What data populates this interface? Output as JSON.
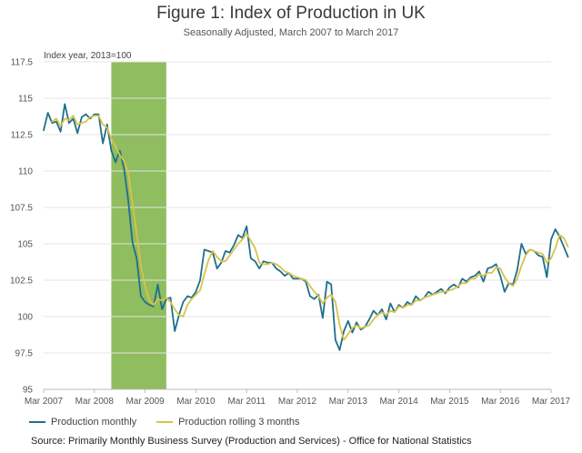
{
  "chart_data": {
    "type": "line",
    "title": "Figure 1: Index of Production in UK",
    "subtitle": "Seasonally Adjusted, March 2007 to March 2017",
    "ylabel": "Index year, 2013=100",
    "ylim": [
      95,
      117.5
    ],
    "yticks": [
      "117.5",
      "115",
      "112.5",
      "110",
      "107.5",
      "105",
      "102.5",
      "100",
      "97.5",
      "95"
    ],
    "xlim": [
      0,
      120
    ],
    "xticks": [
      {
        "label": "Mar 2007",
        "month": 0
      },
      {
        "label": "Mar 2008",
        "month": 12
      },
      {
        "label": "Mar 2009",
        "month": 24
      },
      {
        "label": "Mar 2010",
        "month": 36
      },
      {
        "label": "Mar 2011",
        "month": 48
      },
      {
        "label": "Mar 2012",
        "month": 60
      },
      {
        "label": "Mar 2013",
        "month": 72
      },
      {
        "label": "Mar 2014",
        "month": 84
      },
      {
        "label": "Mar 2015",
        "month": 96
      },
      {
        "label": "Mar 2016",
        "month": 108
      },
      {
        "label": "Mar 2017",
        "month": 120
      }
    ],
    "recession_band": {
      "start": 16,
      "end": 29,
      "color": "#8fbd5f"
    },
    "grid": true,
    "legend_position": "bottom-left",
    "series": [
      {
        "name": "Production monthly",
        "color": "#1f6f8b",
        "values": [
          112.8,
          114.0,
          113.3,
          113.4,
          112.7,
          114.6,
          113.3,
          113.6,
          112.6,
          113.7,
          113.9,
          113.6,
          113.9,
          113.9,
          111.9,
          113.2,
          111.4,
          110.6,
          111.4,
          110.2,
          108.0,
          105.1,
          104.0,
          101.4,
          101.0,
          100.8,
          100.7,
          102.2,
          100.5,
          101.2,
          101.3,
          99.0,
          100.1,
          101.0,
          101.4,
          101.3,
          101.7,
          102.5,
          104.6,
          104.5,
          104.4,
          103.3,
          103.7,
          104.5,
          104.4,
          104.9,
          105.6,
          105.4,
          106.2,
          104.0,
          103.8,
          103.3,
          103.8,
          103.7,
          103.7,
          103.3,
          103.1,
          102.8,
          103.0,
          102.6,
          102.6,
          102.6,
          102.4,
          101.4,
          101.2,
          101.5,
          99.9,
          102.4,
          102.2,
          98.4,
          97.7,
          99.0,
          99.7,
          98.9,
          99.6,
          99.1,
          99.3,
          99.8,
          100.4,
          100.1,
          100.5,
          99.8,
          100.9,
          100.3,
          100.8,
          100.6,
          101.0,
          100.8,
          101.4,
          101.1,
          101.3,
          101.7,
          101.5,
          101.7,
          101.9,
          101.6,
          102.0,
          102.2,
          102.0,
          102.6,
          102.4,
          102.7,
          102.8,
          103.1,
          102.4,
          103.3,
          103.4,
          103.6,
          102.8,
          101.7,
          102.3,
          102.2,
          103.2,
          105.0,
          104.3,
          104.6,
          104.5,
          104.2,
          104.1,
          102.7,
          105.3,
          106.0,
          105.5,
          104.8,
          104.1
        ]
      },
      {
        "name": "Production rolling 3 months",
        "color": "#d9c34a",
        "values": [
          null,
          null,
          113.4,
          113.6,
          113.1,
          113.6,
          113.5,
          113.8,
          113.2,
          113.3,
          113.4,
          113.7,
          113.8,
          113.8,
          113.2,
          113.0,
          112.2,
          111.7,
          111.1,
          110.7,
          109.9,
          107.8,
          105.7,
          103.5,
          102.1,
          101.1,
          100.8,
          101.2,
          101.1,
          101.3,
          101.0,
          100.5,
          100.1,
          100.0,
          100.8,
          101.2,
          101.5,
          101.8,
          102.9,
          103.9,
          104.5,
          104.1,
          103.8,
          103.8,
          104.2,
          104.6,
          105.0,
          105.3,
          105.7,
          105.2,
          104.7,
          103.7,
          103.6,
          103.6,
          103.7,
          103.6,
          103.4,
          103.1,
          103.0,
          102.8,
          102.7,
          102.6,
          102.5,
          102.1,
          101.7,
          101.4,
          100.9,
          101.3,
          101.5,
          101.0,
          99.4,
          98.4,
          98.8,
          99.2,
          99.4,
          99.2,
          99.3,
          99.4,
          99.8,
          100.1,
          100.3,
          100.1,
          100.4,
          100.3,
          100.7,
          100.6,
          100.8,
          100.8,
          101.1,
          101.1,
          101.3,
          101.4,
          101.5,
          101.6,
          101.7,
          101.7,
          101.8,
          101.9,
          102.1,
          102.3,
          102.3,
          102.6,
          102.6,
          102.9,
          102.8,
          103.0,
          103.0,
          103.4,
          103.3,
          102.7,
          102.3,
          102.1,
          102.6,
          103.5,
          104.2,
          104.6,
          104.5,
          104.4,
          104.3,
          103.7,
          104.0,
          104.7,
          105.6,
          105.4,
          104.8
        ]
      }
    ]
  },
  "source": "Source: Primarily Monthly Business Survey (Production and Services) - Office for National Statistics"
}
